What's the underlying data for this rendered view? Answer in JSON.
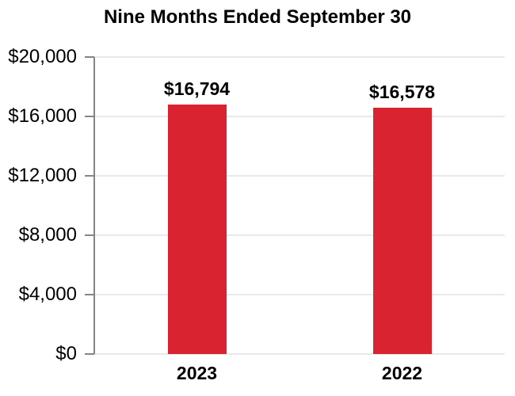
{
  "chart_data": {
    "type": "bar",
    "title": "Nine Months Ended September 30",
    "categories": [
      "2023",
      "2022"
    ],
    "values": [
      16794,
      16578
    ],
    "value_labels": [
      "$16,794",
      "$16,578"
    ],
    "xlabel": "",
    "ylabel": "",
    "ylim": [
      0,
      20000
    ],
    "y_ticks": [
      0,
      4000,
      8000,
      12000,
      16000,
      20000
    ],
    "y_tick_labels": [
      "$0",
      "$4,000",
      "$8,000",
      "$12,000",
      "$16,000",
      "$20,000"
    ],
    "grid": true,
    "legend": "none",
    "colors": {
      "bar": "#DA2331",
      "gridline": "#E9E9E9",
      "axis_line": "#858585",
      "text": "#000000",
      "background": "#FFFFFF"
    }
  }
}
